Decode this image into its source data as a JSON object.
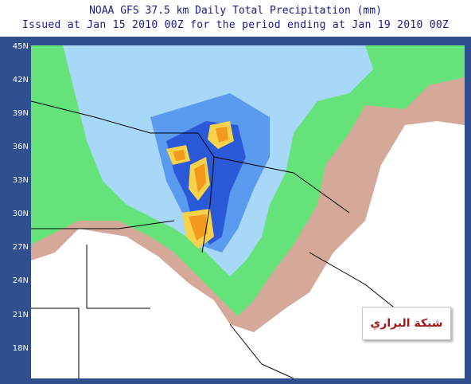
{
  "header": {
    "title_line1": "NOAA GFS 37.5 km Daily Total Precipitation (mm)",
    "title_line2": "Issued at Jan 15 2010 00Z for the period ending at Jan 19 2010 00Z"
  },
  "map": {
    "latitude_labels": [
      "45N",
      "42N",
      "39N",
      "36N",
      "33N",
      "30N",
      "27N",
      "24N",
      "21N",
      "18N"
    ],
    "colors": {
      "frame": "#2f4f8f",
      "tan": "#d4a99a",
      "green": "#66e27a",
      "light_blue": "#a8d8f8",
      "mid_blue": "#5a9bf0",
      "dark_blue": "#2a5ad8",
      "yellow": "#f7d24a",
      "orange": "#f29a1e",
      "border_lines": "#000000"
    }
  },
  "watermark": {
    "text": "شبكة البراري"
  }
}
